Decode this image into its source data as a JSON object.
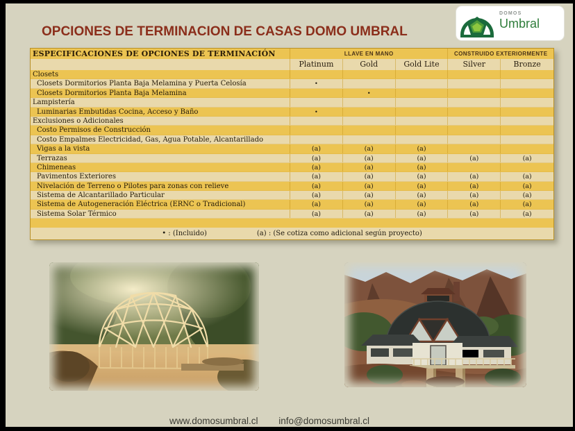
{
  "header": {
    "title": "OPCIONES DE TERMINACION DE CASAS DOMO UMBRAL",
    "logo": {
      "brand_top": "DOMOS",
      "brand_name": "Umbral"
    }
  },
  "table": {
    "spec_header": "ESPECIFICACIONES DE OPCIONES DE TERMINACIÓN",
    "groups": [
      {
        "label": "LLAVE EN MANO",
        "span": 3
      },
      {
        "label": "CONSTRUIDO EXTERIORMENTE",
        "span": 2
      }
    ],
    "columns": [
      "Platinum",
      "Gold",
      "Gold Lite",
      "Silver",
      "Bronze"
    ],
    "rows": [
      {
        "label": "Closets",
        "type": "section",
        "cells": [
          "",
          "",
          "",
          "",
          ""
        ]
      },
      {
        "label": "Closets Dormitorios Planta Baja Melamina y Puerta Celosía",
        "type": "item",
        "cells": [
          "•",
          "",
          "",
          "",
          ""
        ]
      },
      {
        "label": "Closets Dormitorios Planta Baja Melamina",
        "type": "item",
        "cells": [
          "",
          "•",
          "",
          "",
          ""
        ]
      },
      {
        "label": "Lampistería",
        "type": "section",
        "cells": [
          "",
          "",
          "",
          "",
          ""
        ]
      },
      {
        "label": "Luminarias Embutidas Cocina, Acceso y Baño",
        "type": "item",
        "cells": [
          "•",
          "",
          "",
          "",
          ""
        ]
      },
      {
        "label": "Exclusiones o Adicionales",
        "type": "section",
        "cells": [
          "",
          "",
          "",
          "",
          ""
        ]
      },
      {
        "label": "Costo Permisos de Construcción",
        "type": "item",
        "cells": [
          "",
          "",
          "",
          "",
          ""
        ]
      },
      {
        "label": "Costo Empalmes Electricidad, Gas, Agua Potable, Alcantarillado",
        "type": "item",
        "cells": [
          "",
          "",
          "",
          "",
          ""
        ]
      },
      {
        "label": "Vigas a la vista",
        "type": "item",
        "cells": [
          "(a)",
          "(a)",
          "(a)",
          "",
          ""
        ]
      },
      {
        "label": "Terrazas",
        "type": "item",
        "cells": [
          "(a)",
          "(a)",
          "(a)",
          "(a)",
          "(a)"
        ]
      },
      {
        "label": "Chimeneas",
        "type": "item",
        "cells": [
          "(a)",
          "(a)",
          "(a)",
          "",
          ""
        ]
      },
      {
        "label": "Pavimentos Exteriores",
        "type": "item",
        "cells": [
          "(a)",
          "(a)",
          "(a)",
          "(a)",
          "(a)"
        ]
      },
      {
        "label": "Nivelación de Terreno o Pilotes para zonas con relieve",
        "type": "item",
        "cells": [
          "(a)",
          "(a)",
          "(a)",
          "(a)",
          "(a)"
        ]
      },
      {
        "label": "Sistema de Alcantarillado Particular",
        "type": "item",
        "cells": [
          "(a)",
          "(a)",
          "(a)",
          "(a)",
          "(a)"
        ]
      },
      {
        "label": "Sistema de Autogeneración Eléctrica (ERNC o Tradicional)",
        "type": "item",
        "cells": [
          "(a)",
          "(a)",
          "(a)",
          "(a)",
          "(a)"
        ]
      },
      {
        "label": "Sistema Solar Térmico",
        "type": "item",
        "cells": [
          "(a)",
          "(a)",
          "(a)",
          "(a)",
          "(a)"
        ]
      }
    ],
    "legend": {
      "included": "• : (Incluido)",
      "additional": "(a) : (Se cotiza como adicional según proyecto)"
    }
  },
  "footer": {
    "website": "www.domosumbral.cl",
    "email": "info@domosumbral.cl"
  },
  "colors": {
    "title": "#8b2e1b",
    "row_gold": "#ecc452",
    "row_tan": "#e9d9ac",
    "page_bg": "#d6d3bf",
    "logo_green": "#1b6b3c",
    "logo_light_green": "#8dc63f"
  }
}
